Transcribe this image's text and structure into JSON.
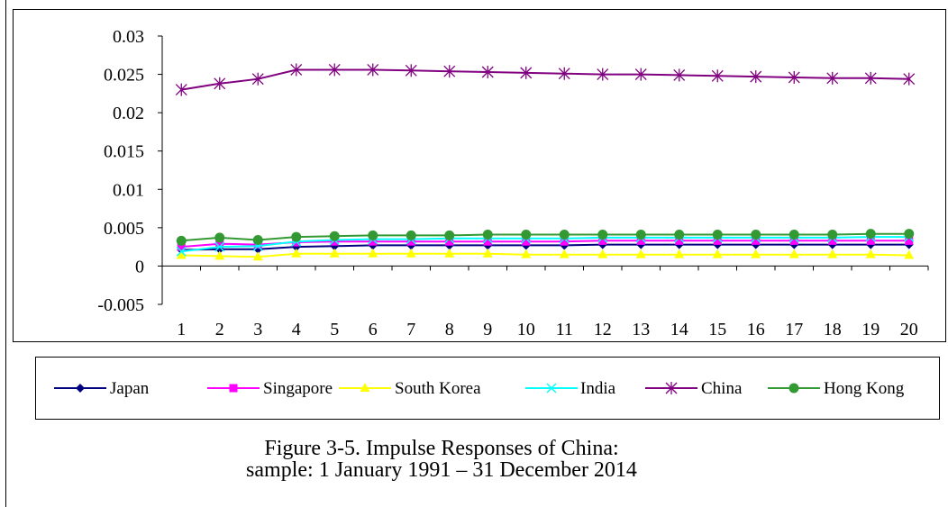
{
  "chart_data": {
    "type": "line",
    "title": "",
    "xlabel": "",
    "ylabel": "",
    "categories": [
      1,
      2,
      3,
      4,
      5,
      6,
      7,
      8,
      9,
      10,
      11,
      12,
      13,
      14,
      15,
      16,
      17,
      18,
      19,
      20
    ],
    "ylim": [
      -0.005,
      0.03
    ],
    "yticks": [
      -0.005,
      0,
      0.005,
      0.01,
      0.015,
      0.02,
      0.025,
      0.03
    ],
    "ytick_labels": [
      "-0.005",
      "0",
      "0.005",
      "0.01",
      "0.015",
      "0.02",
      "0.025",
      "0.03"
    ],
    "grid": false,
    "legend_position": "bottom",
    "series": [
      {
        "name": "Japan",
        "color": "#000080",
        "marker": "diamond",
        "values": [
          0.0021,
          0.0022,
          0.0022,
          0.0025,
          0.0026,
          0.0027,
          0.0027,
          0.0027,
          0.0027,
          0.0027,
          0.0027,
          0.0028,
          0.0028,
          0.0028,
          0.0028,
          0.0028,
          0.0028,
          0.0028,
          0.0028,
          0.0028
        ]
      },
      {
        "name": "Singapore",
        "color": "#FF00FF",
        "marker": "square",
        "values": [
          0.0025,
          0.0029,
          0.0028,
          0.0031,
          0.0032,
          0.0032,
          0.0032,
          0.0032,
          0.0032,
          0.0032,
          0.0032,
          0.0033,
          0.0033,
          0.0033,
          0.0033,
          0.0033,
          0.0033,
          0.0033,
          0.0033,
          0.0033
        ]
      },
      {
        "name": "South Korea",
        "color": "#FFFF00",
        "marker": "triangle",
        "values": [
          0.0014,
          0.0013,
          0.0012,
          0.0016,
          0.0016,
          0.0016,
          0.0016,
          0.0016,
          0.0016,
          0.0015,
          0.0015,
          0.0015,
          0.0015,
          0.0015,
          0.0015,
          0.0015,
          0.0015,
          0.0015,
          0.0015,
          0.0014
        ]
      },
      {
        "name": "India",
        "color": "#00FFFF",
        "marker": "x",
        "values": [
          0.0019,
          0.0025,
          0.0026,
          0.0032,
          0.0034,
          0.0035,
          0.0035,
          0.0036,
          0.0036,
          0.0036,
          0.0036,
          0.0037,
          0.0037,
          0.0037,
          0.0037,
          0.0037,
          0.0037,
          0.0037,
          0.0038,
          0.0038
        ]
      },
      {
        "name": "China",
        "color": "#800080",
        "marker": "asterisk",
        "values": [
          0.023,
          0.0238,
          0.0244,
          0.0256,
          0.0256,
          0.0256,
          0.0255,
          0.0254,
          0.0253,
          0.0252,
          0.0251,
          0.025,
          0.025,
          0.0249,
          0.0248,
          0.0247,
          0.0246,
          0.0245,
          0.0245,
          0.0244
        ]
      },
      {
        "name": "Hong Kong",
        "color": "#339933",
        "marker": "circle",
        "values": [
          0.0033,
          0.0037,
          0.0034,
          0.0038,
          0.0039,
          0.004,
          0.004,
          0.004,
          0.0041,
          0.0041,
          0.0041,
          0.0041,
          0.0041,
          0.0041,
          0.0041,
          0.0041,
          0.0041,
          0.0041,
          0.0042,
          0.0042
        ]
      }
    ]
  },
  "caption": {
    "line1": "Figure 3-5. Impulse Responses of China:",
    "line2": "sample: 1 January 1991 – 31 December 2014"
  }
}
